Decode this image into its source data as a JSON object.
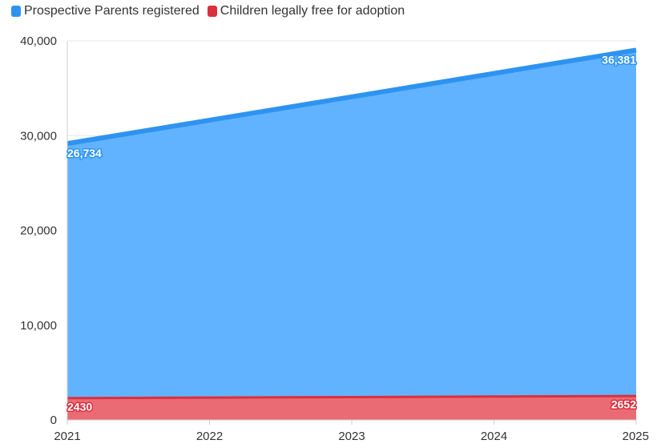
{
  "legend": {
    "items": [
      {
        "label": "Prospective Parents registered",
        "color": "#2e93f0"
      },
      {
        "label": "Children legally free for adoption",
        "color": "#dc2f3d"
      }
    ]
  },
  "chart_data": {
    "type": "area",
    "title": "",
    "xlabel": "",
    "ylabel": "",
    "x": [
      "2021",
      "2022",
      "2023",
      "2024",
      "2025"
    ],
    "ylim": [
      0,
      40000
    ],
    "y_ticks": [
      "0",
      "10,000",
      "20,000",
      "30,000",
      "40,000"
    ],
    "stacked": true,
    "grid": true,
    "legend_position": "top-left",
    "series": [
      {
        "name": "Children legally free for adoption",
        "values": [
          2430,
          2485,
          2540,
          2596,
          2652
        ],
        "color": "#dc2f3d",
        "fill": "#ea6b73",
        "data_labels": [
          {
            "index": 0,
            "text": "2430"
          },
          {
            "index": 4,
            "text": "2652"
          }
        ]
      },
      {
        "name": "Prospective Parents registered",
        "values": [
          26734,
          29146,
          31558,
          33969,
          36381
        ],
        "color": "#2e93f0",
        "fill": "#62b3ff",
        "data_labels": [
          {
            "index": 0,
            "text": "26,734"
          },
          {
            "index": 4,
            "text": "36,381"
          }
        ]
      }
    ]
  }
}
